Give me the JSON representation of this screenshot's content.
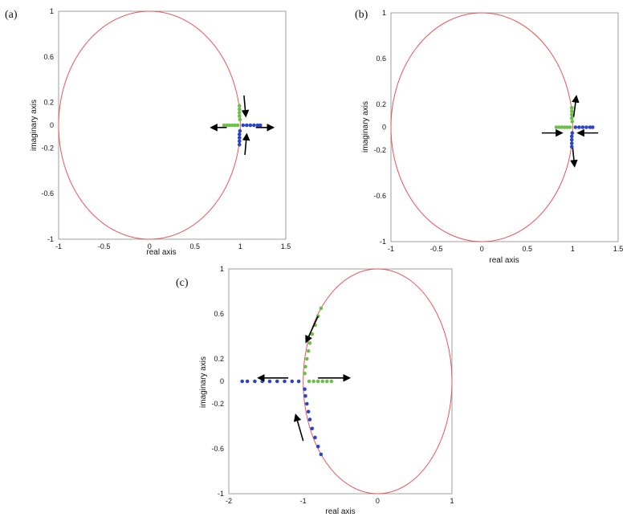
{
  "chart_data": [
    {
      "panel": "(a)",
      "type": "scatter",
      "xlabel": "real axis",
      "ylabel": "imaginary axis",
      "xlim": [
        -1,
        1.5
      ],
      "ylim": [
        -1,
        1
      ],
      "xticks": [
        "-1",
        "-0.5",
        "0",
        "0.5",
        "1",
        "1.5"
      ],
      "xtick_values": [
        -1,
        -0.5,
        0,
        0.5,
        1,
        1.5
      ],
      "yticks": [
        "1",
        "0.6",
        "0.2",
        "0",
        "-0.2",
        "-0.6",
        "-1"
      ],
      "ytick_values": [
        1,
        0.6,
        0.2,
        0,
        -0.2,
        -0.6,
        -1
      ],
      "unit_circle": {
        "color": "#e8555a",
        "center": [
          0,
          0
        ],
        "radius": 1
      },
      "series": [
        {
          "color": "#6cc04a",
          "points": [
            [
              0.99,
              0.17
            ],
            [
              0.99,
              0.14
            ],
            [
              0.99,
              0.11
            ],
            [
              0.99,
              0.08
            ],
            [
              0.995,
              0.05
            ],
            [
              0.97,
              0.0
            ],
            [
              0.94,
              0.0
            ],
            [
              0.91,
              0.0
            ],
            [
              0.88,
              0.0
            ],
            [
              0.85,
              0.0
            ],
            [
              0.82,
              0.0
            ]
          ]
        },
        {
          "color": "#2c45c8",
          "points": [
            [
              1.03,
              0.0
            ],
            [
              1.07,
              0.0
            ],
            [
              1.11,
              0.0
            ],
            [
              1.15,
              0.0
            ],
            [
              1.19,
              0.0
            ],
            [
              1.22,
              0.0
            ],
            [
              0.995,
              -0.05
            ],
            [
              0.99,
              -0.08
            ],
            [
              0.99,
              -0.11
            ],
            [
              0.99,
              -0.14
            ],
            [
              0.99,
              -0.17
            ]
          ]
        }
      ],
      "arrows": [
        {
          "from": [
            1.04,
            0.26
          ],
          "to": [
            1.06,
            0.08
          ]
        },
        {
          "from": [
            1.05,
            -0.26
          ],
          "to": [
            1.07,
            -0.08
          ]
        },
        {
          "from": [
            0.85,
            -0.02
          ],
          "to": [
            0.68,
            -0.02
          ]
        },
        {
          "from": [
            1.17,
            -0.02
          ],
          "to": [
            1.36,
            -0.02
          ]
        }
      ]
    },
    {
      "panel": "(b)",
      "type": "scatter",
      "xlabel": "real axis",
      "ylabel": "imaginary axis",
      "xlim": [
        -1,
        1.5
      ],
      "ylim": [
        -1,
        1
      ],
      "xticks": [
        "-1",
        "-0.5",
        "0",
        "0.5",
        "1",
        "1.5"
      ],
      "xtick_values": [
        -1,
        -0.5,
        0,
        0.5,
        1,
        1.5
      ],
      "yticks": [
        "1",
        "0.6",
        "0.2",
        "0",
        "-0.2",
        "-0.6",
        "-1"
      ],
      "ytick_values": [
        1,
        0.6,
        0.2,
        0,
        -0.2,
        -0.6,
        -1
      ],
      "unit_circle": {
        "color": "#e8555a",
        "center": [
          0,
          0
        ],
        "radius": 1
      },
      "series": [
        {
          "color": "#6cc04a",
          "points": [
            [
              0.99,
              0.17
            ],
            [
              0.99,
              0.14
            ],
            [
              0.99,
              0.11
            ],
            [
              0.99,
              0.08
            ],
            [
              0.995,
              0.05
            ],
            [
              0.97,
              0.0
            ],
            [
              0.94,
              0.0
            ],
            [
              0.91,
              0.0
            ],
            [
              0.88,
              0.0
            ],
            [
              0.85,
              0.0
            ],
            [
              0.82,
              0.0
            ]
          ]
        },
        {
          "color": "#2c45c8",
          "points": [
            [
              1.03,
              0.0
            ],
            [
              1.07,
              0.0
            ],
            [
              1.11,
              0.0
            ],
            [
              1.15,
              0.0
            ],
            [
              1.19,
              0.0
            ],
            [
              1.22,
              0.0
            ],
            [
              0.995,
              -0.05
            ],
            [
              0.99,
              -0.08
            ],
            [
              0.99,
              -0.11
            ],
            [
              0.99,
              -0.14
            ],
            [
              0.99,
              -0.17
            ]
          ]
        }
      ],
      "arrows": [
        {
          "from": [
            1.01,
            0.09
          ],
          "to": [
            1.04,
            0.27
          ]
        },
        {
          "from": [
            1.0,
            -0.18
          ],
          "to": [
            1.02,
            -0.34
          ]
        },
        {
          "from": [
            0.66,
            -0.05
          ],
          "to": [
            0.88,
            -0.05
          ]
        },
        {
          "from": [
            1.28,
            -0.05
          ],
          "to": [
            1.06,
            -0.05
          ]
        }
      ]
    },
    {
      "panel": "(c)",
      "type": "scatter",
      "xlabel": "real axis",
      "ylabel": "imaginary axis",
      "xlim": [
        -2,
        1
      ],
      "ylim": [
        -1,
        1
      ],
      "xticks": [
        "-2",
        "-1",
        "0",
        "1"
      ],
      "xtick_values": [
        -2,
        -1,
        0,
        1
      ],
      "yticks": [
        "1",
        "0.6",
        "0.2",
        "0",
        "-0.2",
        "-0.6",
        "-1"
      ],
      "ytick_values": [
        1,
        0.6,
        0.2,
        0,
        -0.2,
        -0.6,
        -1
      ],
      "unit_circle": {
        "color": "#e8555a",
        "center": [
          0,
          0
        ],
        "radius": 1
      },
      "series": [
        {
          "color": "#6cc04a",
          "points": [
            [
              -0.76,
              0.65
            ],
            [
              -0.8,
              0.58
            ],
            [
              -0.84,
              0.5
            ],
            [
              -0.88,
              0.42
            ],
            [
              -0.91,
              0.34
            ],
            [
              -0.93,
              0.27
            ],
            [
              -0.95,
              0.2
            ],
            [
              -0.97,
              0.13
            ],
            [
              -0.98,
              0.07
            ],
            [
              -0.92,
              0.0
            ],
            [
              -0.86,
              0.0
            ],
            [
              -0.8,
              0.0
            ],
            [
              -0.74,
              0.0
            ],
            [
              -0.68,
              0.0
            ],
            [
              -0.62,
              0.0
            ]
          ]
        },
        {
          "color": "#2c45c8",
          "points": [
            [
              -1.06,
              0.0
            ],
            [
              -1.15,
              0.0
            ],
            [
              -1.25,
              0.0
            ],
            [
              -1.35,
              0.0
            ],
            [
              -1.45,
              0.0
            ],
            [
              -1.55,
              0.0
            ],
            [
              -1.65,
              0.0
            ],
            [
              -1.75,
              0.0
            ],
            [
              -1.82,
              0.0
            ],
            [
              -0.98,
              -0.07
            ],
            [
              -0.97,
              -0.13
            ],
            [
              -0.95,
              -0.2
            ],
            [
              -0.93,
              -0.27
            ],
            [
              -0.91,
              -0.34
            ],
            [
              -0.88,
              -0.42
            ],
            [
              -0.84,
              -0.5
            ],
            [
              -0.8,
              -0.58
            ],
            [
              -0.76,
              -0.65
            ]
          ]
        }
      ],
      "arrows": [
        {
          "from": [
            -0.8,
            0.58
          ],
          "to": [
            -0.96,
            0.35
          ]
        },
        {
          "from": [
            -1.0,
            -0.53
          ],
          "to": [
            -1.1,
            -0.3
          ]
        },
        {
          "from": [
            -1.2,
            0.03
          ],
          "to": [
            -1.6,
            0.03
          ]
        },
        {
          "from": [
            -0.8,
            0.03
          ],
          "to": [
            -0.38,
            0.03
          ]
        }
      ]
    }
  ]
}
